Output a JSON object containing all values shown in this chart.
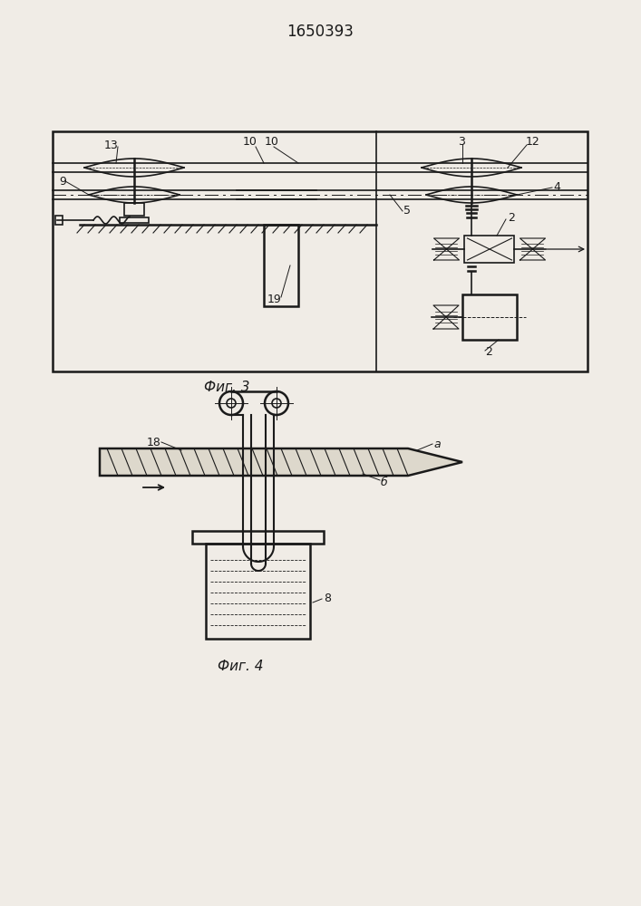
{
  "title": "1650393",
  "fig3_label": "Фиг. 3",
  "fig4_label": "Фиг. 4",
  "bg_color": "#f0ece6",
  "line_color": "#1a1a1a"
}
